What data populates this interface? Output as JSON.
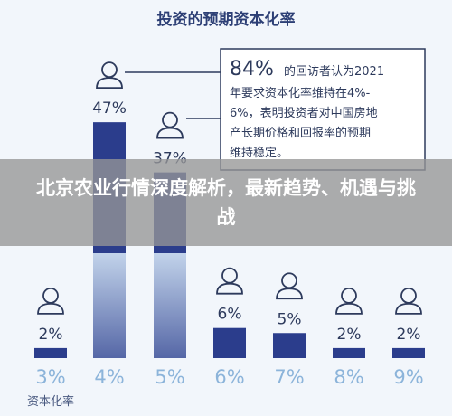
{
  "banner": {
    "headline": "北京农业行情深度解析，最新趋势、机遇与挑战"
  },
  "chart_data": {
    "type": "bar",
    "title": "投资的预期资本化率",
    "xlabel": "资本化率",
    "categories": [
      "3%",
      "4%",
      "5%",
      "6%",
      "7%",
      "8%",
      "9%"
    ],
    "values": [
      2,
      47,
      37,
      6,
      5,
      2,
      2
    ],
    "value_labels": [
      "2%",
      "47%",
      "37%",
      "6%",
      "5%",
      "2%",
      "2%"
    ],
    "ylim": [
      0,
      50
    ],
    "grid": false,
    "callout": {
      "highlight": "84%",
      "lines": [
        "的回访者认为2021",
        "年要求资本化率维持在4%-",
        "6%，表明投资者对中国房地",
        "产长期价格和回报率的预期",
        "维持稳定。"
      ]
    },
    "colors": {
      "bar": "#2b3d8c",
      "bar_fade": "#d3e4f5",
      "person_icon": "#2d3a5c",
      "tick": "#8cb4da"
    }
  }
}
